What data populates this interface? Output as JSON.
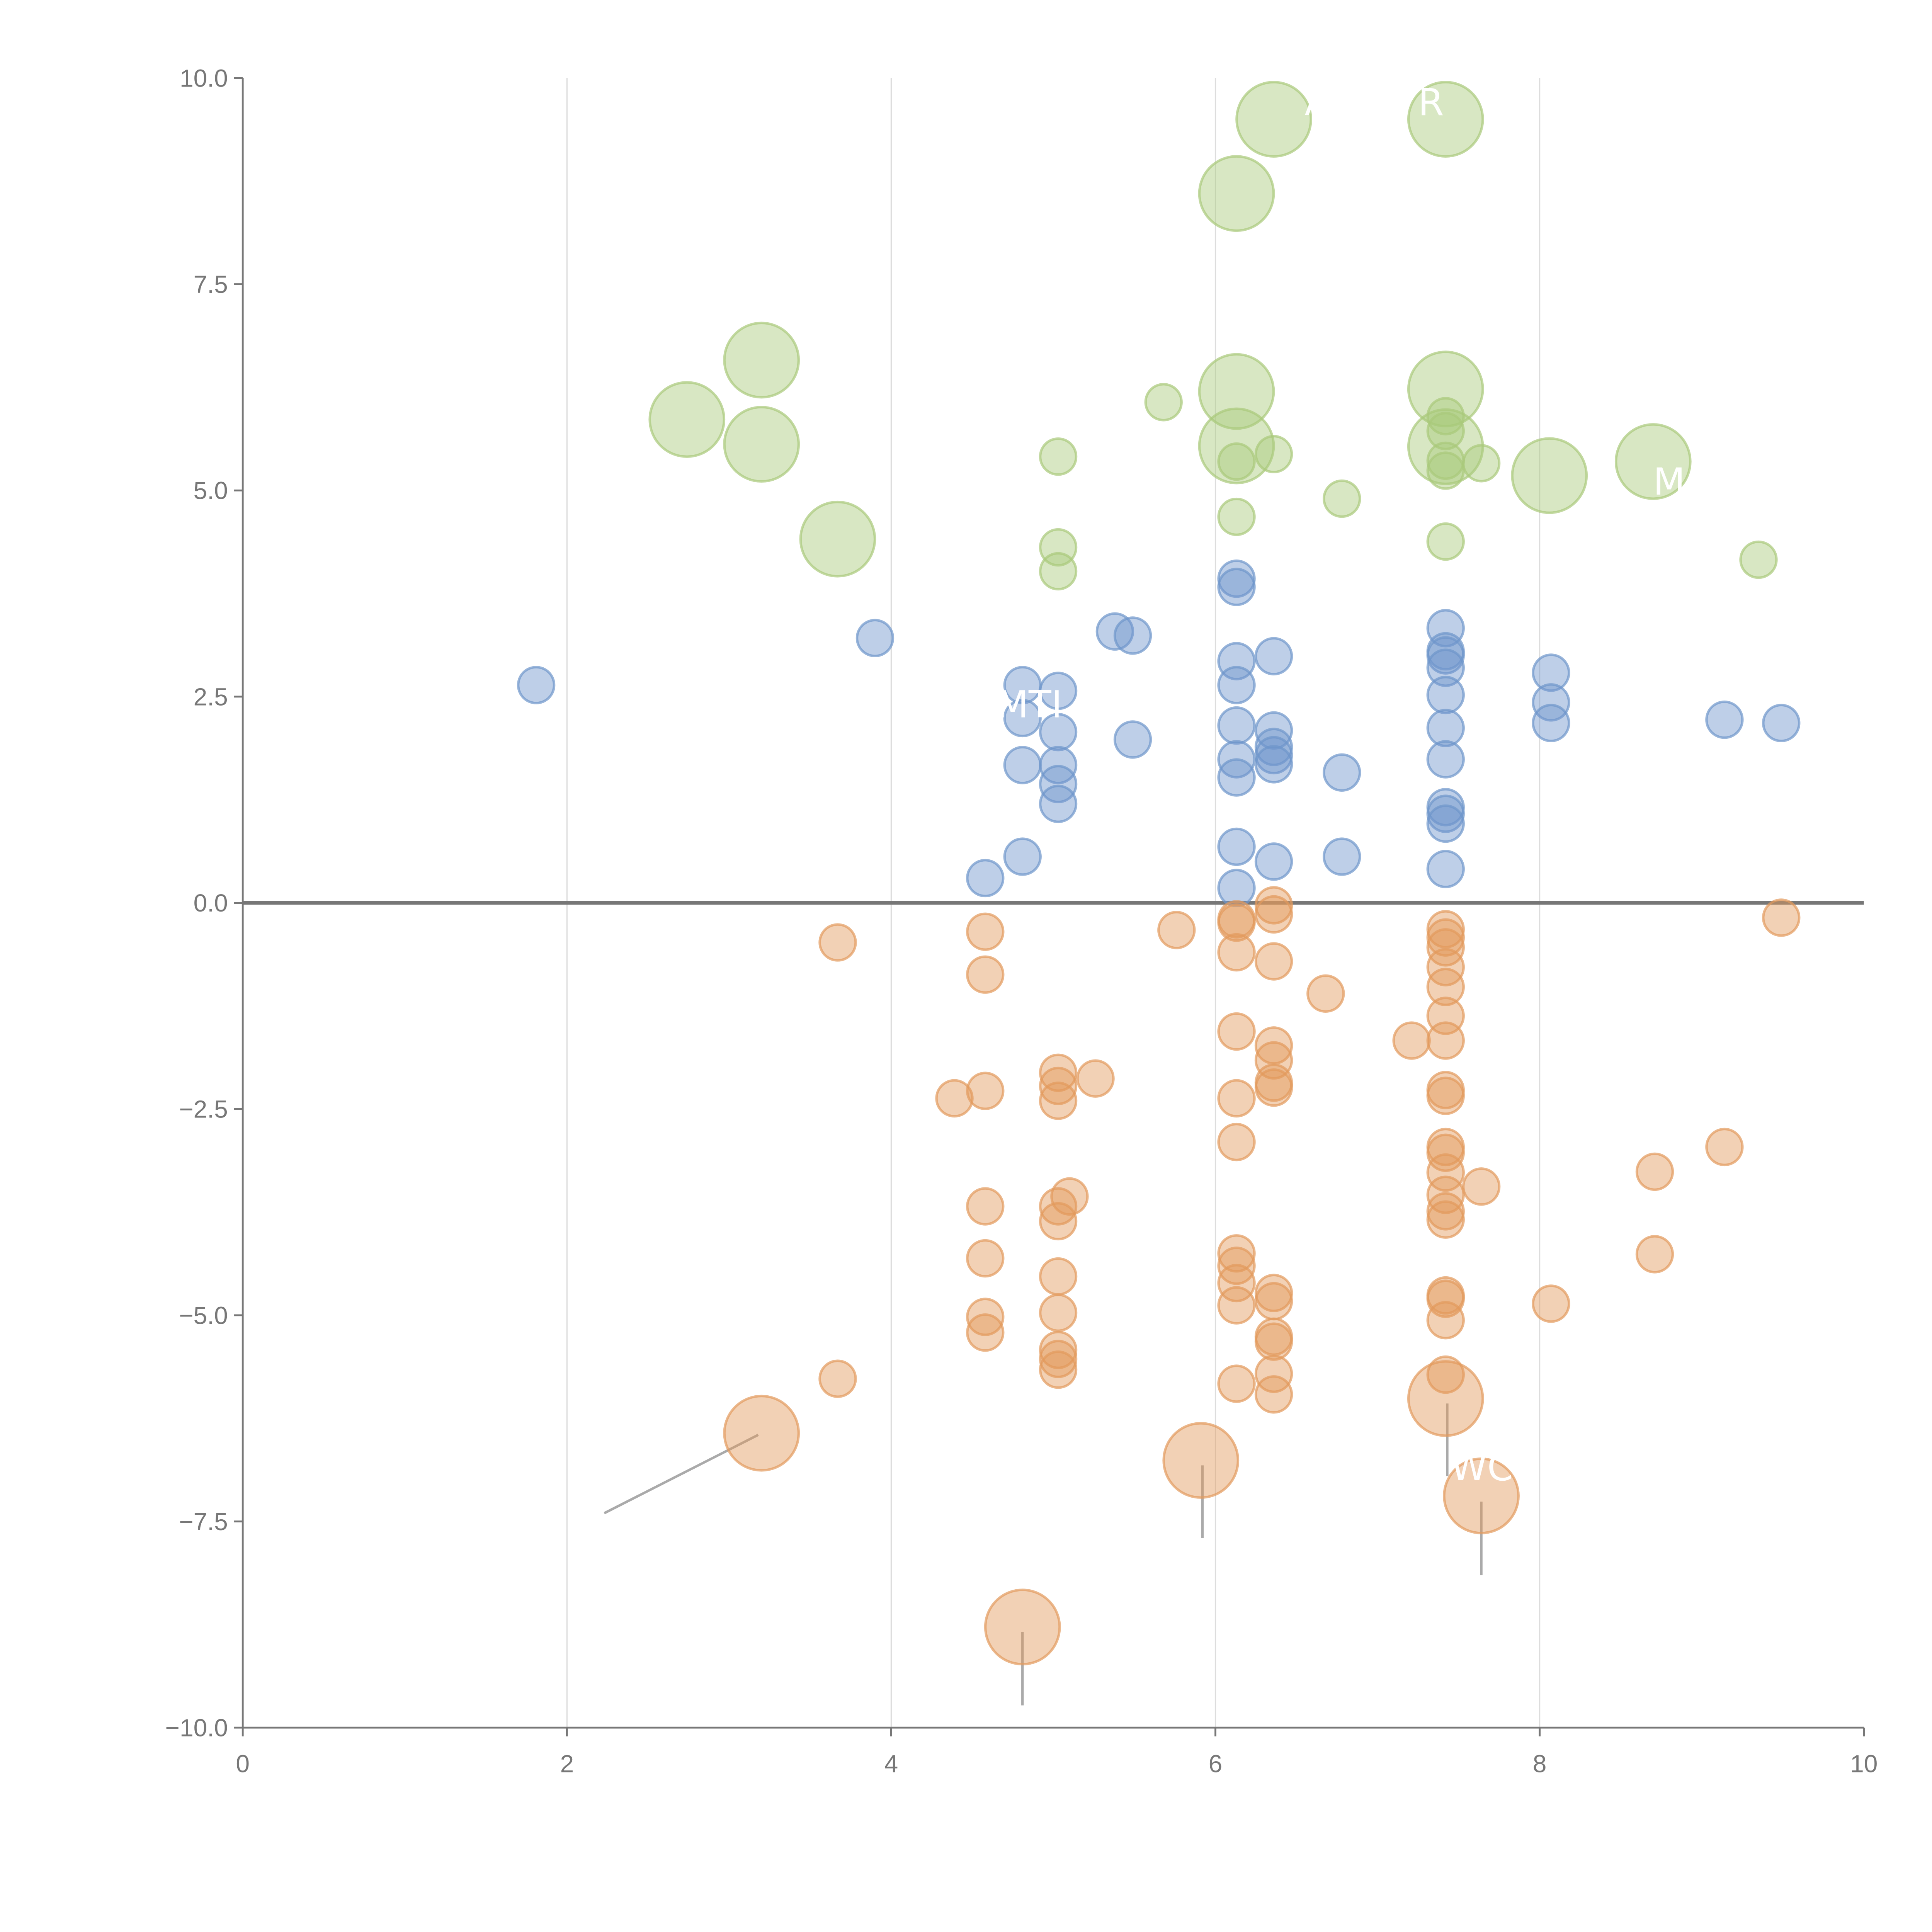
{
  "chart_data": {
    "type": "scatter",
    "title": "",
    "xlabel": "",
    "ylabel": "",
    "xlim": [
      0,
      10
    ],
    "ylim": [
      -10,
      10
    ],
    "xticks": [
      "0",
      "2",
      "4",
      "6",
      "8",
      "10"
    ],
    "yticks": [
      "10.0",
      "7.5",
      "5.0",
      "2.5",
      "0.0",
      "−2.5",
      "−5.0",
      "−7.5",
      "−10.0"
    ],
    "grid": "vertical",
    "legend": "none",
    "series": [
      {
        "name": "green",
        "color": "#a9c97a",
        "points": [
          [
            6.36,
            9.5,
            2
          ],
          [
            7.42,
            9.5,
            2
          ],
          [
            6.13,
            8.6,
            2
          ],
          [
            3.2,
            6.58,
            2
          ],
          [
            2.74,
            5.86,
            2
          ],
          [
            3.2,
            5.56,
            2
          ],
          [
            6.13,
            6.2,
            2
          ],
          [
            7.42,
            6.23,
            2
          ],
          [
            6.13,
            5.54,
            2
          ],
          [
            7.42,
            5.53,
            2
          ],
          [
            8.06,
            5.18,
            2
          ],
          [
            8.7,
            5.35,
            2
          ],
          [
            3.67,
            4.41,
            2
          ],
          [
            5.68,
            6.07,
            1
          ],
          [
            5.03,
            5.41,
            1
          ],
          [
            6.13,
            5.35,
            1
          ],
          [
            6.36,
            5.44,
            1
          ],
          [
            7.64,
            5.33,
            1
          ],
          [
            7.42,
            5.9,
            1
          ],
          [
            7.42,
            5.72,
            1
          ],
          [
            7.42,
            5.36,
            1
          ],
          [
            7.42,
            5.24,
            1
          ],
          [
            6.78,
            4.9,
            1
          ],
          [
            6.13,
            4.68,
            1
          ],
          [
            5.03,
            4.31,
            1
          ],
          [
            5.03,
            4.02,
            1
          ],
          [
            7.42,
            4.38,
            1
          ],
          [
            9.35,
            4.16,
            1
          ]
        ]
      },
      {
        "name": "blue",
        "color": "#6e95cb",
        "points": [
          [
            1.81,
            2.64,
            1
          ],
          [
            3.9,
            3.21,
            1
          ],
          [
            5.38,
            3.29,
            1
          ],
          [
            5.49,
            3.24,
            1
          ],
          [
            4.81,
            2.64,
            1
          ],
          [
            5.03,
            2.57,
            1
          ],
          [
            4.81,
            2.24,
            1
          ],
          [
            5.03,
            2.07,
            1
          ],
          [
            4.81,
            1.67,
            1
          ],
          [
            5.03,
            1.67,
            1
          ],
          [
            5.03,
            1.44,
            1
          ],
          [
            5.03,
            1.2,
            1
          ],
          [
            5.49,
            1.98,
            1
          ],
          [
            4.81,
            0.56,
            1
          ],
          [
            4.58,
            0.3,
            1
          ],
          [
            6.13,
            3.93,
            1
          ],
          [
            6.13,
            3.83,
            1
          ],
          [
            6.13,
            2.93,
            1
          ],
          [
            6.13,
            2.64,
            1
          ],
          [
            6.13,
            2.15,
            1
          ],
          [
            6.13,
            1.74,
            1
          ],
          [
            6.13,
            1.52,
            1
          ],
          [
            6.13,
            0.68,
            1
          ],
          [
            6.13,
            0.18,
            1
          ],
          [
            6.36,
            2.99,
            1
          ],
          [
            6.36,
            2.09,
            1
          ],
          [
            6.36,
            1.89,
            1
          ],
          [
            6.36,
            1.79,
            1
          ],
          [
            6.36,
            1.68,
            1
          ],
          [
            6.36,
            0.5,
            1
          ],
          [
            6.78,
            1.58,
            1
          ],
          [
            6.78,
            0.56,
            1
          ],
          [
            7.42,
            3.33,
            1
          ],
          [
            7.42,
            3.05,
            1
          ],
          [
            7.42,
            3.0,
            1
          ],
          [
            7.42,
            2.85,
            1
          ],
          [
            7.42,
            2.52,
            1
          ],
          [
            7.42,
            2.12,
            1
          ],
          [
            7.42,
            1.74,
            1
          ],
          [
            7.42,
            1.16,
            1
          ],
          [
            7.42,
            1.08,
            1
          ],
          [
            7.42,
            0.96,
            1
          ],
          [
            7.42,
            0.41,
            1
          ],
          [
            8.07,
            2.79,
            1
          ],
          [
            8.07,
            2.43,
            1
          ],
          [
            8.07,
            2.18,
            1
          ],
          [
            9.14,
            2.22,
            1
          ],
          [
            9.49,
            2.18,
            1
          ]
        ]
      },
      {
        "name": "orange",
        "color": "#e39a5c",
        "points": [
          [
            3.67,
            -0.48,
            1
          ],
          [
            4.58,
            -0.35,
            1
          ],
          [
            4.58,
            -0.87,
            1
          ],
          [
            5.76,
            -0.33,
            1
          ],
          [
            6.13,
            -0.2,
            1
          ],
          [
            6.13,
            -0.24,
            1
          ],
          [
            6.13,
            -0.6,
            1
          ],
          [
            6.36,
            -0.03,
            1
          ],
          [
            6.36,
            -0.14,
            1
          ],
          [
            6.36,
            -0.71,
            1
          ],
          [
            6.68,
            -1.1,
            1
          ],
          [
            7.21,
            -1.67,
            1
          ],
          [
            7.42,
            -0.32,
            1
          ],
          [
            7.42,
            -0.42,
            1
          ],
          [
            7.42,
            -0.54,
            1
          ],
          [
            7.42,
            -0.78,
            1
          ],
          [
            7.42,
            -1.02,
            1
          ],
          [
            7.42,
            -1.37,
            1
          ],
          [
            7.42,
            -1.67,
            1
          ],
          [
            6.13,
            -1.56,
            1
          ],
          [
            6.36,
            -1.73,
            1
          ],
          [
            6.36,
            -1.91,
            1
          ],
          [
            6.36,
            -2.18,
            1
          ],
          [
            6.36,
            -2.24,
            1
          ],
          [
            6.13,
            -2.37,
            1
          ],
          [
            6.13,
            -2.9,
            1
          ],
          [
            4.39,
            -2.37,
            1
          ],
          [
            4.58,
            -2.28,
            1
          ],
          [
            5.03,
            -2.06,
            1
          ],
          [
            5.03,
            -2.22,
            1
          ],
          [
            5.03,
            -2.4,
            1
          ],
          [
            5.26,
            -2.13,
            1
          ],
          [
            7.42,
            -2.27,
            1
          ],
          [
            7.42,
            -2.34,
            1
          ],
          [
            7.42,
            -2.96,
            1
          ],
          [
            7.42,
            -3.03,
            1
          ],
          [
            7.42,
            -3.27,
            1
          ],
          [
            7.42,
            -3.54,
            1
          ],
          [
            7.42,
            -3.74,
            1
          ],
          [
            7.42,
            -3.84,
            1
          ],
          [
            7.64,
            -3.44,
            1
          ],
          [
            8.71,
            -3.26,
            1
          ],
          [
            9.14,
            -2.96,
            1
          ],
          [
            8.71,
            -4.26,
            1
          ],
          [
            9.49,
            -0.18,
            1
          ],
          [
            4.58,
            -3.68,
            1
          ],
          [
            5.1,
            -3.56,
            1
          ],
          [
            5.03,
            -3.68,
            1
          ],
          [
            5.03,
            -3.86,
            1
          ],
          [
            4.58,
            -4.31,
            1
          ],
          [
            5.03,
            -4.53,
            1
          ],
          [
            4.58,
            -5.02,
            1
          ],
          [
            4.58,
            -5.21,
            1
          ],
          [
            5.03,
            -4.97,
            1
          ],
          [
            5.03,
            -5.42,
            1
          ],
          [
            5.03,
            -5.53,
            1
          ],
          [
            5.03,
            -5.66,
            1
          ],
          [
            6.13,
            -4.25,
            1
          ],
          [
            6.13,
            -4.4,
            1
          ],
          [
            6.13,
            -4.61,
            1
          ],
          [
            6.13,
            -4.88,
            1
          ],
          [
            6.13,
            -5.83,
            1
          ],
          [
            6.36,
            -4.73,
            1
          ],
          [
            6.36,
            -4.83,
            1
          ],
          [
            6.36,
            -5.26,
            1
          ],
          [
            6.36,
            -5.32,
            1
          ],
          [
            6.36,
            -5.71,
            1
          ],
          [
            6.36,
            -5.96,
            1
          ],
          [
            7.42,
            -4.76,
            1
          ],
          [
            7.42,
            -4.8,
            1
          ],
          [
            7.42,
            -5.06,
            1
          ],
          [
            7.42,
            -5.72,
            1
          ],
          [
            8.07,
            -4.86,
            1
          ],
          [
            3.67,
            -5.77,
            1
          ],
          [
            3.2,
            -6.43,
            2
          ],
          [
            5.91,
            -6.76,
            2
          ],
          [
            7.42,
            -6.01,
            2
          ],
          [
            7.64,
            -7.19,
            2
          ],
          [
            4.81,
            -8.78,
            2
          ]
        ]
      }
    ],
    "annotations": [
      {
        "text": "A",
        "x": 6.55,
        "y": 9.55
      },
      {
        "text": "R",
        "x": 7.25,
        "y": 9.55
      },
      {
        "text": "MTI",
        "x": 4.65,
        "y": 2.25
      },
      {
        "text": "M",
        "x": 8.7,
        "y": 4.95
      },
      {
        "text": "WC",
        "x": 7.45,
        "y": -7.0
      }
    ],
    "leader_lines": [
      [
        3.18,
        -6.45,
        2.23,
        -7.4
      ],
      [
        5.92,
        -6.82,
        5.92,
        -7.7
      ],
      [
        7.43,
        -6.07,
        7.43,
        -6.95
      ],
      [
        7.64,
        -7.26,
        7.64,
        -8.15
      ],
      [
        4.81,
        -8.84,
        4.81,
        -9.73
      ]
    ]
  }
}
